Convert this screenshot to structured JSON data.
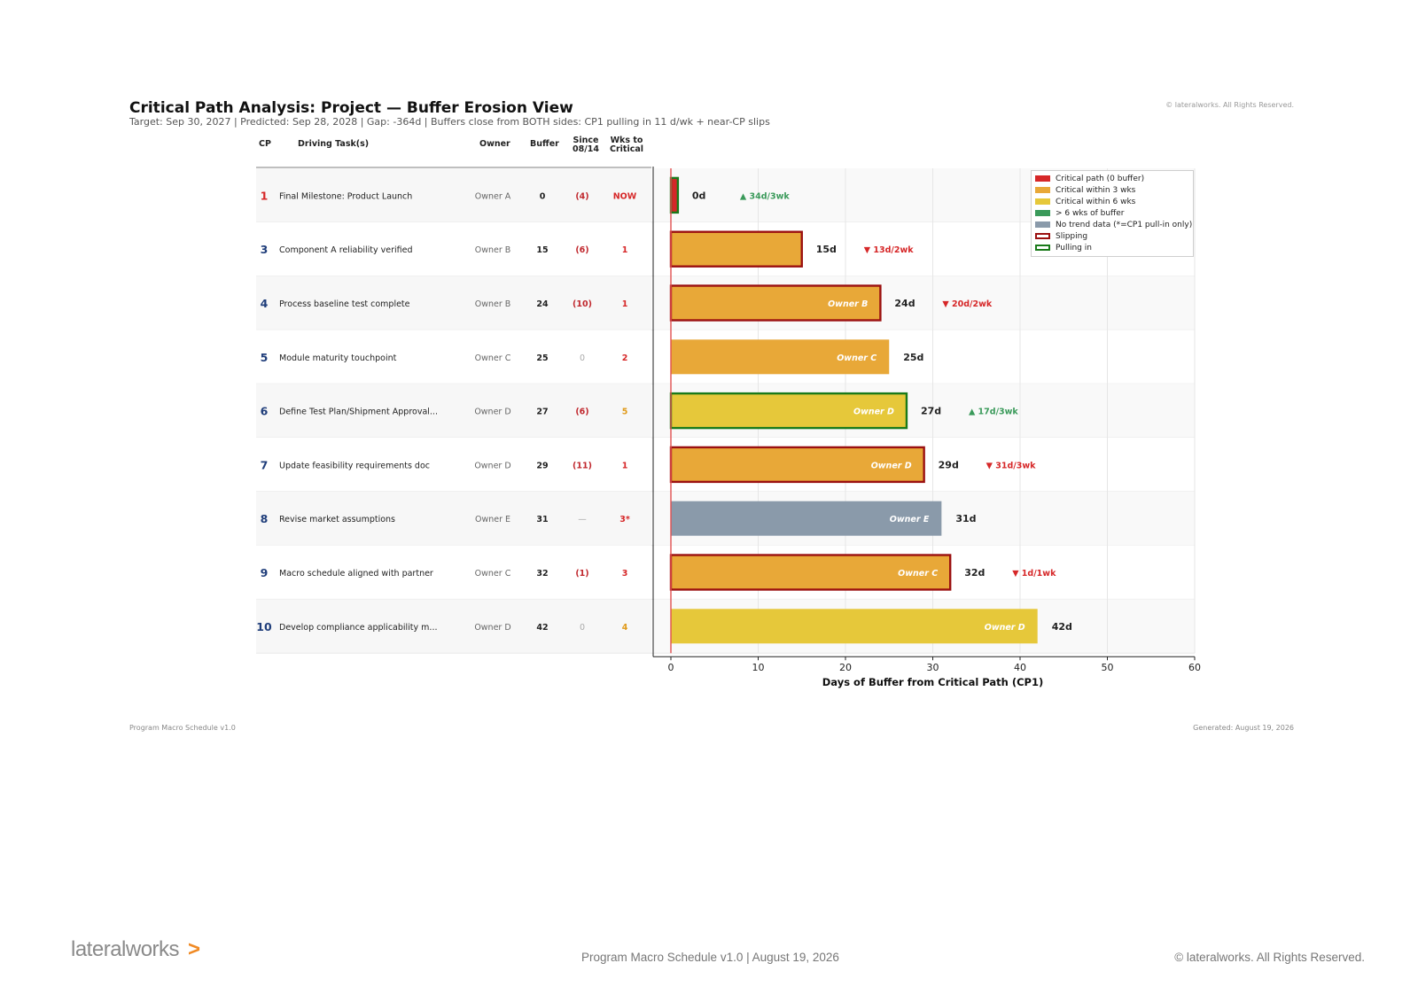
{
  "header": {
    "title": "Critical Path Analysis: Project — Buffer Erosion View",
    "subtitle": "Target: Sep 30, 2027   |   Predicted: Sep 28, 2028   |   Gap: -364d   |   Buffers close from BOTH sides: CP1 pulling in 11 d/wk + near-CP slips",
    "copyright": "© lateralworks. All Rights Reserved."
  },
  "table": {
    "columns": {
      "cp": "CP",
      "task": "Driving Task(s)",
      "owner": "Owner",
      "buffer": "Buffer",
      "since_1": "Since",
      "since_2": "08/14",
      "wks_1": "Wks to",
      "wks_2": "Critical"
    },
    "rows": [
      {
        "cp": "1",
        "task": "Final Milestone: Product Launch",
        "owner": "Owner A",
        "buffer": "0",
        "since": "(4)",
        "wks": "NOW",
        "cp_color": "#d62728",
        "since_color": "#c0272d",
        "wks_color": "#d62728"
      },
      {
        "cp": "3",
        "task": "Component A reliability verified",
        "owner": "Owner B",
        "buffer": "15",
        "since": "(6)",
        "wks": "1",
        "cp_color": "#1f3d7a",
        "since_color": "#c0272d",
        "wks_color": "#d62728"
      },
      {
        "cp": "4",
        "task": "Process baseline test complete",
        "owner": "Owner B",
        "buffer": "24",
        "since": "(10)",
        "wks": "1",
        "cp_color": "#1f3d7a",
        "since_color": "#c0272d",
        "wks_color": "#d62728"
      },
      {
        "cp": "5",
        "task": "Module maturity touchpoint",
        "owner": "Owner C",
        "buffer": "25",
        "since": "0",
        "wks": "2",
        "cp_color": "#1f3d7a",
        "since_color": "#aaaaaa",
        "wks_color": "#d62728"
      },
      {
        "cp": "6",
        "task": "Define Test Plan/Shipment Approval...",
        "owner": "Owner D",
        "buffer": "27",
        "since": "(6)",
        "wks": "5",
        "cp_color": "#1f3d7a",
        "since_color": "#c0272d",
        "wks_color": "#e09a1a"
      },
      {
        "cp": "7",
        "task": "Update feasibility requirements doc",
        "owner": "Owner D",
        "buffer": "29",
        "since": "(11)",
        "wks": "1",
        "cp_color": "#1f3d7a",
        "since_color": "#c0272d",
        "wks_color": "#d62728"
      },
      {
        "cp": "8",
        "task": "Revise market assumptions",
        "owner": "Owner E",
        "buffer": "31",
        "since": "—",
        "wks": "3*",
        "cp_color": "#1f3d7a",
        "since_color": "#aaaaaa",
        "wks_color": "#d62728"
      },
      {
        "cp": "9",
        "task": "Macro schedule aligned with partner",
        "owner": "Owner C",
        "buffer": "32",
        "since": "(1)",
        "wks": "3",
        "cp_color": "#1f3d7a",
        "since_color": "#c0272d",
        "wks_color": "#d62728"
      },
      {
        "cp": "10",
        "task": "Develop compliance applicability m...",
        "owner": "Owner D",
        "buffer": "42",
        "since": "0",
        "wks": "4",
        "cp_color": "#1f3d7a",
        "since_color": "#aaaaaa",
        "wks_color": "#e09a1a"
      }
    ]
  },
  "chart_data": {
    "type": "bar",
    "orientation": "horizontal",
    "xlabel": "Days of Buffer from Critical Path (CP1)",
    "xlim": [
      0,
      60
    ],
    "xticks": [
      0,
      10,
      20,
      30,
      40,
      50,
      60
    ],
    "grid": true,
    "legend_position": "top-right",
    "categories": [
      "1",
      "3",
      "4",
      "5",
      "6",
      "7",
      "8",
      "9",
      "10"
    ],
    "bars": [
      {
        "value": 0.8,
        "value_label": "0d",
        "inner_label": "",
        "fill": "#d62728",
        "outline": "#1a7a1a",
        "trend": "▲ 34d/3wk",
        "trend_color": "#3a9a5a"
      },
      {
        "value": 15,
        "value_label": "15d",
        "inner_label": "",
        "fill": "#e8a838",
        "outline": "#9b1010",
        "trend": "▼ 13d/2wk",
        "trend_color": "#d62728"
      },
      {
        "value": 24,
        "value_label": "24d",
        "inner_label": "Owner B",
        "fill": "#e8a838",
        "outline": "#9b1010",
        "trend": "▼ 20d/2wk",
        "trend_color": "#d62728"
      },
      {
        "value": 25,
        "value_label": "25d",
        "inner_label": "Owner C",
        "fill": "#e8a838",
        "outline": "",
        "trend": "",
        "trend_color": ""
      },
      {
        "value": 27,
        "value_label": "27d",
        "inner_label": "Owner D",
        "fill": "#e6c83a",
        "outline": "#1a7a1a",
        "trend": "▲ 17d/3wk",
        "trend_color": "#3a9a5a"
      },
      {
        "value": 29,
        "value_label": "29d",
        "inner_label": "Owner D",
        "fill": "#e8a838",
        "outline": "#9b1010",
        "trend": "▼ 31d/3wk",
        "trend_color": "#d62728"
      },
      {
        "value": 31,
        "value_label": "31d",
        "inner_label": "Owner E",
        "fill": "#8a9aaa",
        "outline": "",
        "trend": "",
        "trend_color": ""
      },
      {
        "value": 32,
        "value_label": "32d",
        "inner_label": "Owner C",
        "fill": "#e8a838",
        "outline": "#9b1010",
        "trend": "▼ 1d/1wk",
        "trend_color": "#d62728"
      },
      {
        "value": 42,
        "value_label": "42d",
        "inner_label": "Owner D",
        "fill": "#e6c83a",
        "outline": "",
        "trend": "",
        "trend_color": ""
      }
    ],
    "legend": [
      {
        "label": "Critical path (0 buffer)",
        "kind": "fill",
        "color": "#d62728"
      },
      {
        "label": "Critical within 3 wks",
        "kind": "fill",
        "color": "#e8a838"
      },
      {
        "label": "Critical within 6 wks",
        "kind": "fill",
        "color": "#e6c83a"
      },
      {
        "label": "> 6 wks of buffer",
        "kind": "fill",
        "color": "#3a9a5a"
      },
      {
        "label": "No trend data (*=CP1 pull-in only)",
        "kind": "fill",
        "color": "#8a9aaa"
      },
      {
        "label": "Slipping",
        "kind": "outline",
        "color": "#9b1010"
      },
      {
        "label": "Pulling in",
        "kind": "outline",
        "color": "#1a7a1a"
      }
    ]
  },
  "footer": {
    "doc_small": "Program Macro Schedule v1.0",
    "generated_small": "Generated: August 19, 2026",
    "logo_text": "lateralworks",
    "logo_chevron": ">",
    "center": "Program Macro Schedule v1.0  |  August 19, 2026",
    "copyright": "© lateralworks. All Rights Reserved."
  }
}
